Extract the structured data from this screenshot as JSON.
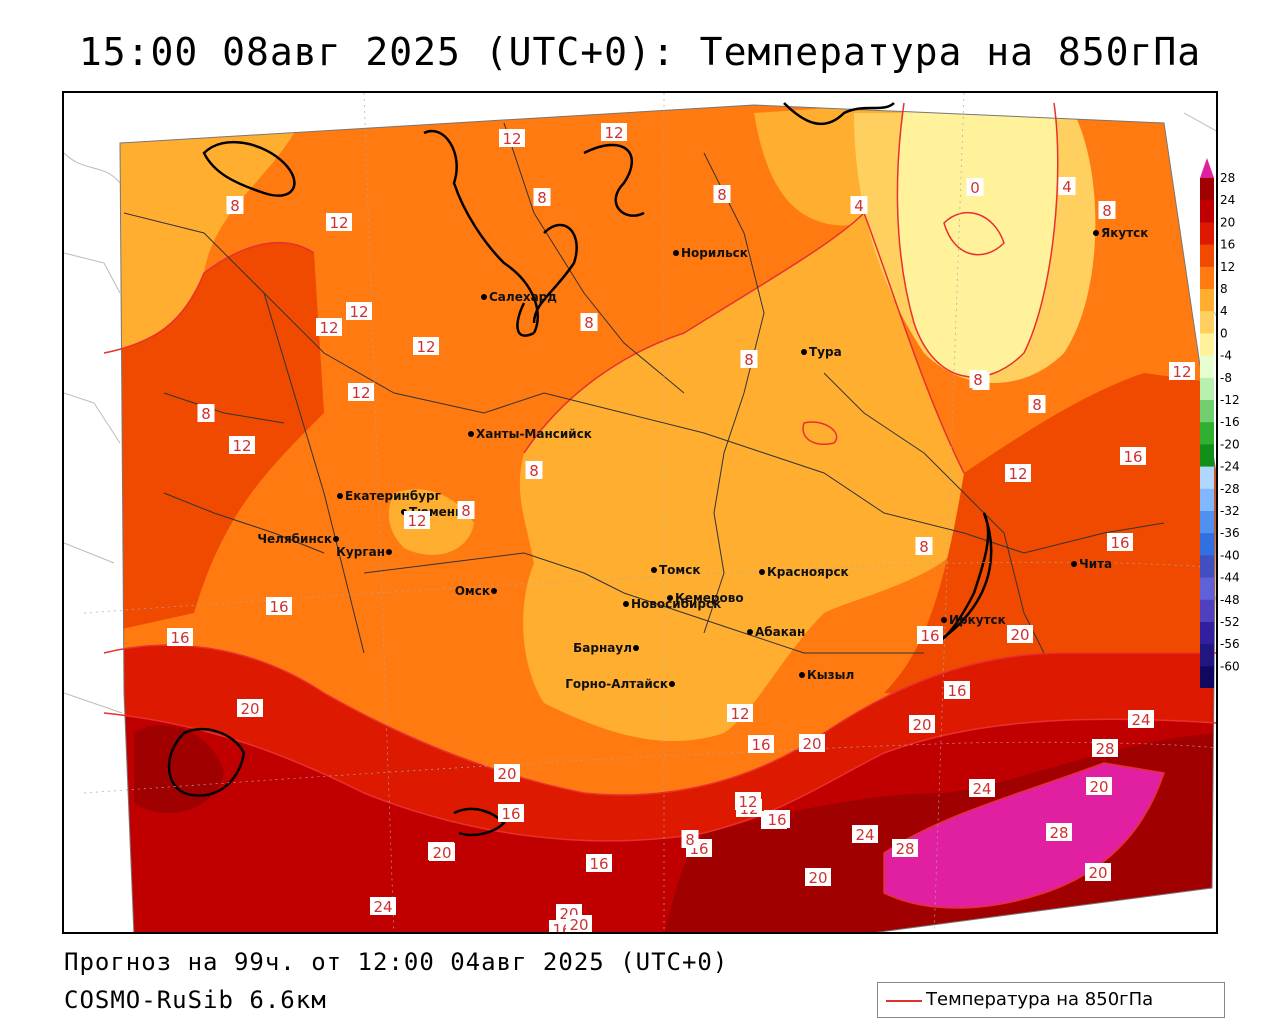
{
  "header": {
    "title": "15:00 08авг 2025 (UTC+0): Температура на 850гПа"
  },
  "footer": {
    "forecast": "Прогноз на 99ч. от 12:00 04авг 2025 (UTC+0)",
    "model": "COSMO-RuSib 6.6км"
  },
  "legend": {
    "label": "Температура на 850гПа",
    "line_color": "#e03030"
  },
  "colorbar": {
    "labels": [
      "28",
      "24",
      "20",
      "16",
      "12",
      "8",
      "4",
      "0",
      "-4",
      "-8",
      "-12",
      "-16",
      "-20",
      "-24",
      "-28",
      "-32",
      "-36",
      "-40",
      "-44",
      "-48",
      "-52",
      "-56",
      "-60"
    ],
    "colors": [
      "#a00000",
      "#c00000",
      "#dd1a00",
      "#f04a00",
      "#ff7a10",
      "#ffae30",
      "#ffd060",
      "#fff29a",
      "#e6ffd0",
      "#b8f0b0",
      "#70d070",
      "#30b030",
      "#10901a",
      "#b0d8ff",
      "#80b8ff",
      "#5090f0",
      "#3070e0",
      "#4050c0",
      "#6060d8",
      "#5040c0",
      "#3020a0",
      "#201880",
      "#100860"
    ],
    "top_color": "#e020a0"
  },
  "map": {
    "cities": [
      "Норильск",
      "Салехард",
      "Тура",
      "Якутск",
      "Ханты-Мансийск",
      "Екатеринбург",
      "Тюмень",
      "Челябинск",
      "Курган",
      "Омск",
      "Томск",
      "Красноярск",
      "Новосибирск",
      "Кемерово",
      "Абакан",
      "Иркутск",
      "Чита",
      "Барнаул",
      "Горно-Алтайск",
      "Кызыл"
    ],
    "contour_labels": [
      "12",
      "12",
      "8",
      "8",
      "4",
      "0",
      "4",
      "8",
      "12",
      "8",
      "12",
      "12",
      "12",
      "8",
      "8",
      "12",
      "8",
      "8",
      "8",
      "12",
      "12",
      "8",
      "8",
      "8",
      "8",
      "8",
      "4",
      "8",
      "12",
      "12",
      "16",
      "16",
      "16",
      "16",
      "20",
      "20",
      "16",
      "16",
      "12",
      "16",
      "20",
      "20",
      "24",
      "28",
      "24",
      "28",
      "20",
      "28",
      "24",
      "20",
      "16",
      "12",
      "16",
      "20",
      "20",
      "16",
      "16",
      "20",
      "24",
      "20",
      "20",
      "16",
      "20",
      "8",
      "12",
      "16"
    ]
  }
}
